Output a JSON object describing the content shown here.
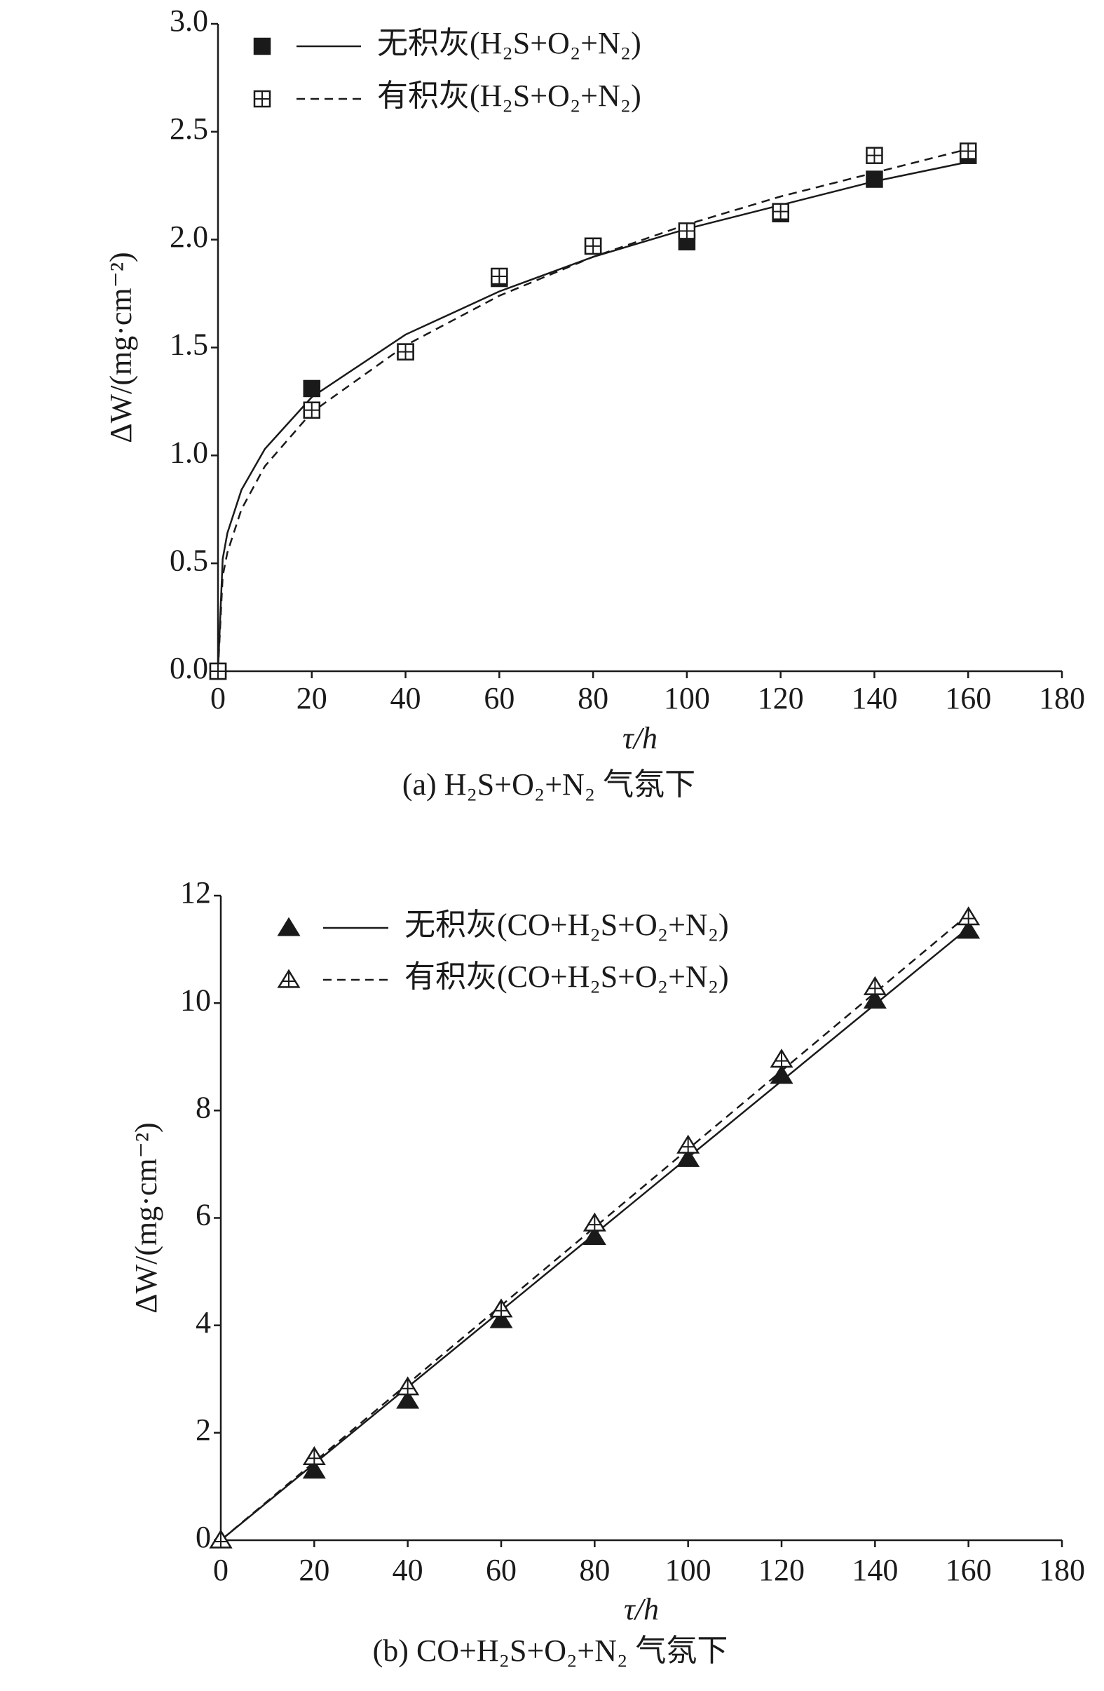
{
  "chart_data": [
    {
      "type": "scatter",
      "caption": "(a) H₂S+O₂+N₂ 气氛下",
      "xlabel": "τ/h",
      "ylabel": "ΔW/(mg·cm⁻²)",
      "x": [
        0,
        20,
        40,
        60,
        80,
        100,
        120,
        140,
        160
      ],
      "xlim": [
        0,
        180
      ],
      "xticks": [
        0,
        20,
        40,
        60,
        80,
        100,
        120,
        140,
        160,
        180
      ],
      "ylim": [
        0,
        3
      ],
      "yticks": [
        {
          "value": 0,
          "label": "0.0"
        },
        0.5,
        {
          "value": 1,
          "label": "1.0"
        },
        1.5,
        {
          "value": 2,
          "label": "2.0"
        },
        2.5,
        {
          "value": 3,
          "label": "3.0"
        }
      ],
      "grid": false,
      "legend": "upper left",
      "series": [
        {
          "name": "无积灰(H₂S+O₂+N₂)",
          "color": "#1a1a1a",
          "marker": "square-filled",
          "line": "solid",
          "values": [
            0,
            1.31,
            1.48,
            1.82,
            1.97,
            1.99,
            2.12,
            2.28,
            2.39
          ],
          "curve": {
            "x": [
              0,
              1,
              2,
              5,
              10,
              20,
              40,
              60,
              80,
              100,
              120,
              140,
              160
            ],
            "values": [
              0,
              0.52,
              0.64,
              0.84,
              1.03,
              1.27,
              1.56,
              1.76,
              1.92,
              2.05,
              2.16,
              2.27,
              2.36
            ]
          }
        },
        {
          "name": "有积灰(H₂S+O₂+N₂)",
          "color": "#1a1a1a",
          "marker": "square-cross",
          "line": "dashed",
          "values": [
            0,
            1.21,
            1.48,
            1.83,
            1.97,
            2.04,
            2.13,
            2.39,
            2.41
          ],
          "curve": {
            "x": [
              0,
              1,
              2,
              5,
              10,
              20,
              40,
              60,
              80,
              100,
              120,
              140,
              160
            ],
            "values": [
              0,
              0.44,
              0.55,
              0.75,
              0.95,
              1.2,
              1.51,
              1.74,
              1.92,
              2.07,
              2.2,
              2.31,
              2.42
            ]
          }
        }
      ]
    },
    {
      "type": "scatter",
      "caption": "(b) CO+H₂S+O₂+N₂ 气氛下",
      "xlabel": "τ/h",
      "ylabel": "ΔW/(mg·cm⁻²)",
      "x": [
        0,
        20,
        40,
        60,
        80,
        100,
        120,
        140,
        160
      ],
      "xlim": [
        0,
        180
      ],
      "xticks": [
        0,
        20,
        40,
        60,
        80,
        100,
        120,
        140,
        160,
        180
      ],
      "ylim": [
        0,
        12
      ],
      "yticks": [
        0,
        2,
        4,
        6,
        8,
        10,
        12
      ],
      "grid": false,
      "legend": "upper left",
      "series": [
        {
          "name": "无积灰(CO+H₂S+O₂+N₂)",
          "color": "#1a1a1a",
          "marker": "triangle-filled",
          "line": "solid",
          "values": [
            0,
            1.3,
            2.6,
            4.1,
            5.65,
            7.1,
            8.65,
            10.05,
            11.35
          ],
          "curve": {
            "x": [
              0,
              160
            ],
            "values": [
              0,
              11.4
            ]
          }
        },
        {
          "name": "有积灰(CO+H₂S+O₂+N₂)",
          "color": "#1a1a1a",
          "marker": "triangle-cross",
          "line": "dashed",
          "values": [
            0,
            1.55,
            2.85,
            4.3,
            5.9,
            7.35,
            8.95,
            10.3,
            11.6
          ],
          "curve": {
            "x": [
              0,
              160
            ],
            "values": [
              0,
              11.65
            ]
          }
        }
      ]
    }
  ]
}
